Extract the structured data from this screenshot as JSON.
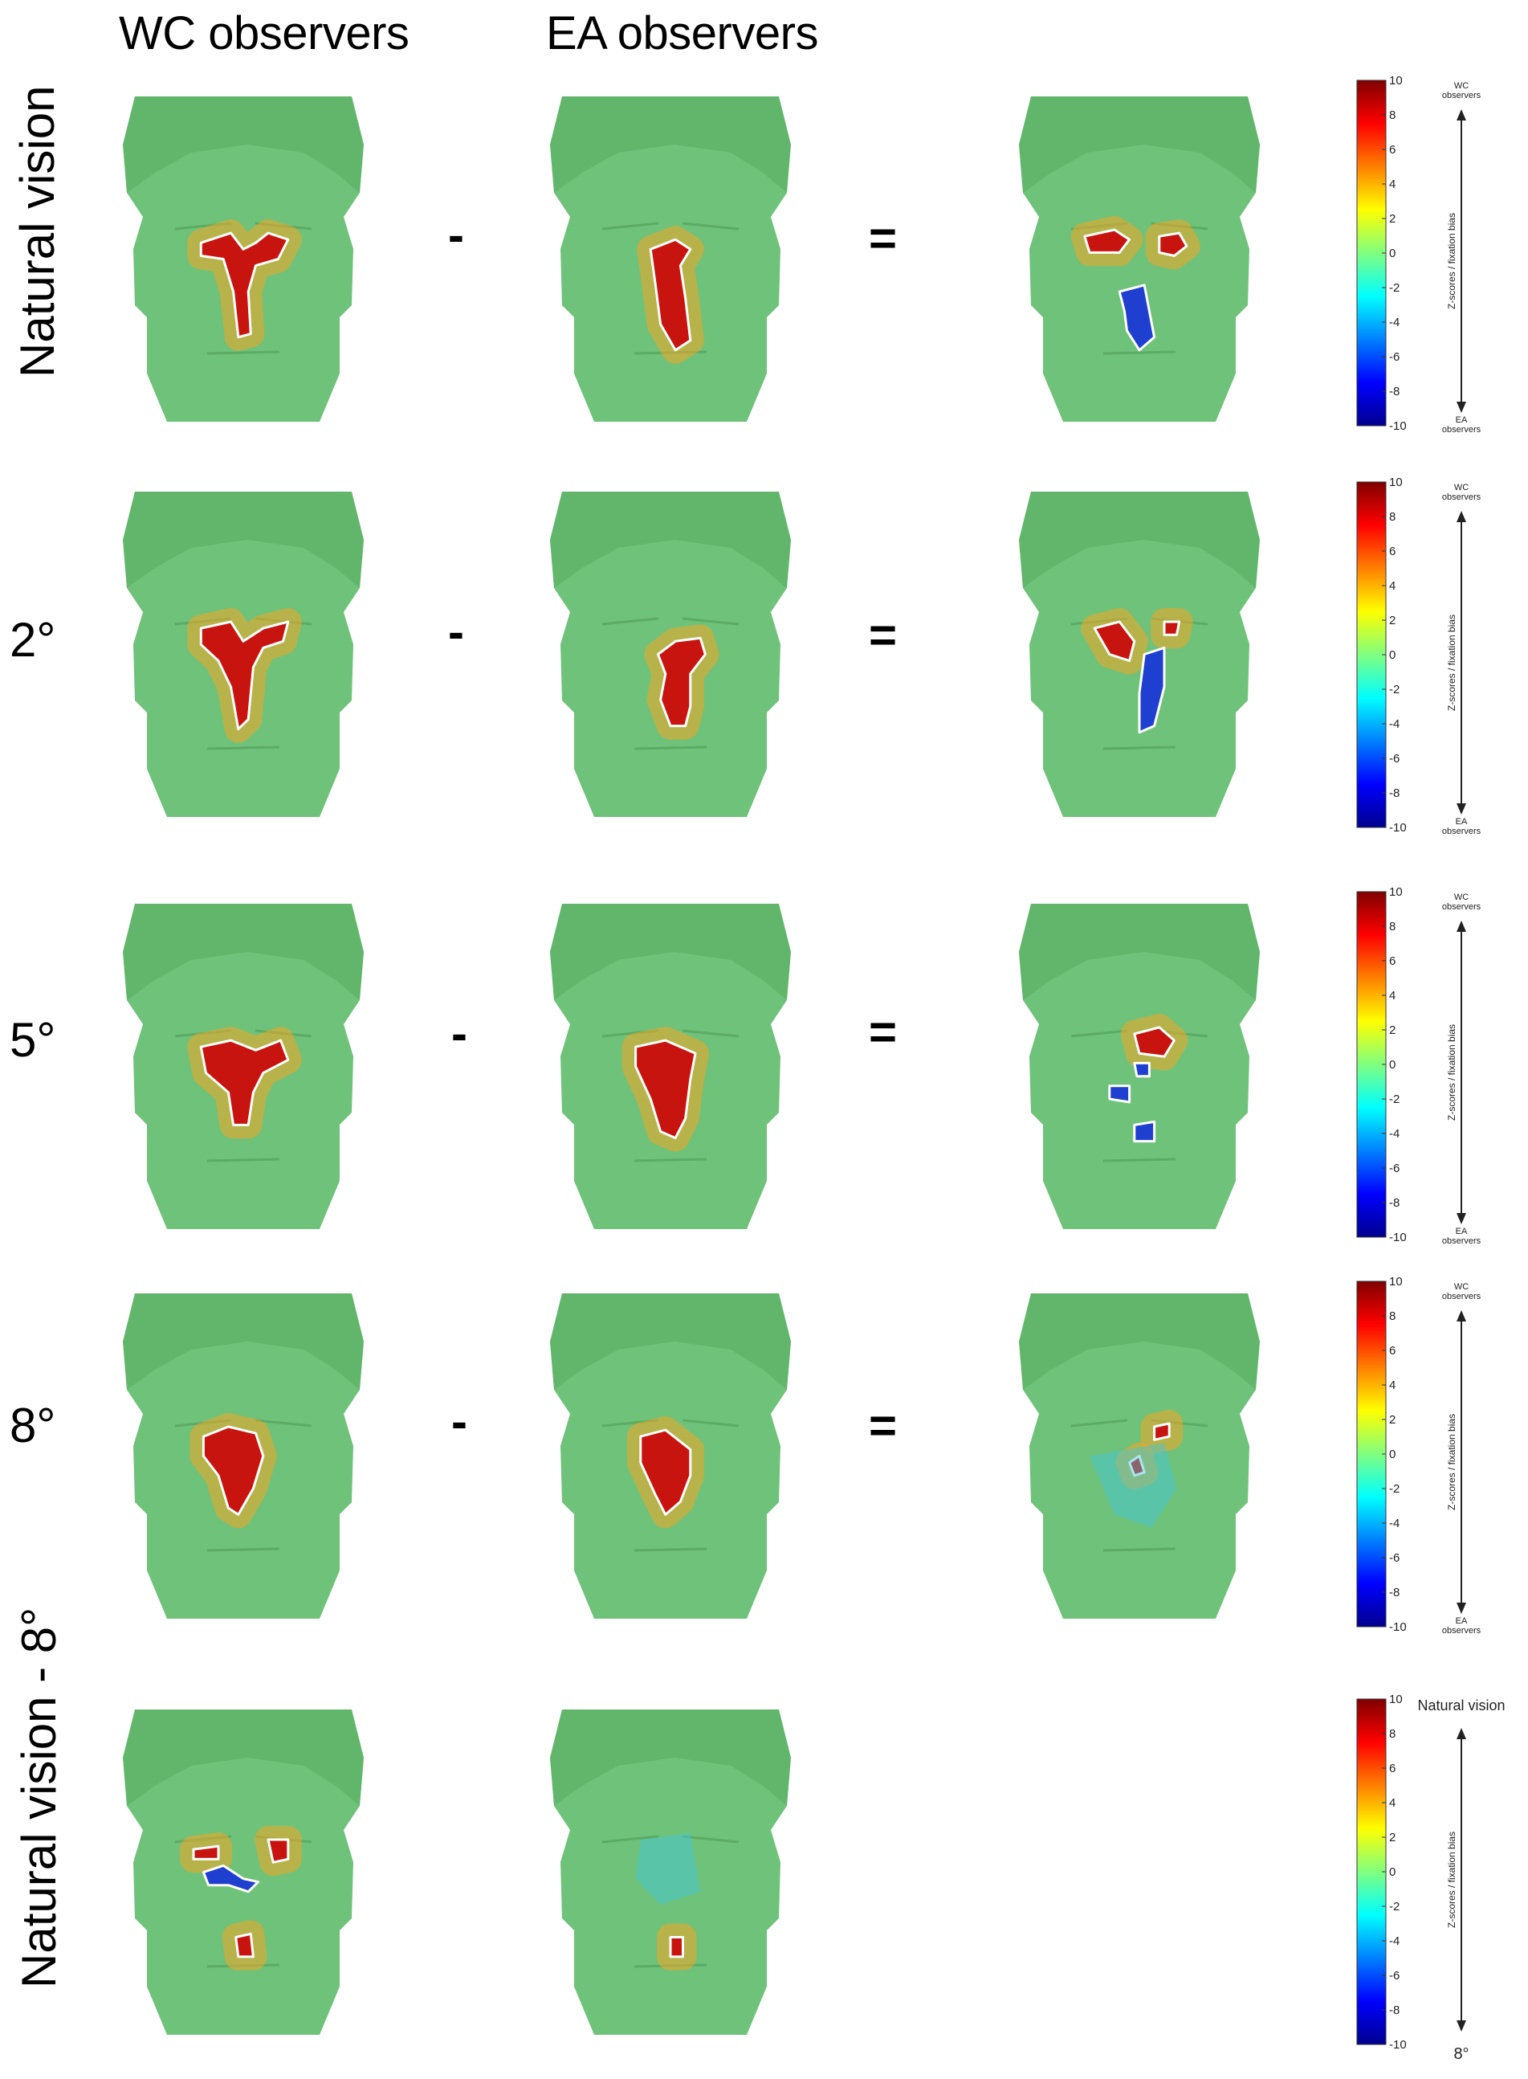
{
  "column_headers": [
    "WC observers",
    "EA observers"
  ],
  "operators": {
    "minus": "-",
    "equals": "="
  },
  "rows": [
    {
      "label": "Natural vision",
      "rotated": true,
      "has_diff": true
    },
    {
      "label": "2°",
      "rotated": false,
      "has_diff": true
    },
    {
      "label": "5°",
      "rotated": false,
      "has_diff": true
    },
    {
      "label": "8°",
      "rotated": false,
      "has_diff": true
    },
    {
      "label": "Natural vision - 8°",
      "rotated": true,
      "has_diff": false
    }
  ],
  "colorbar": {
    "ticks": [
      "10",
      "8",
      "6",
      "4",
      "2",
      "0",
      "-2",
      "-4",
      "-6",
      "-8",
      "-10"
    ],
    "axis_label": "Z-scores / fixation bias",
    "top_label_wc": [
      "WC",
      "observers"
    ],
    "bottom_label_ea": [
      "EA",
      "observers"
    ],
    "top_label_last": "Natural vision",
    "bottom_label_last": "8°",
    "colors": [
      "#00008f",
      "#0000ff",
      "#0080ff",
      "#00ffff",
      "#80ff80",
      "#ffff00",
      "#ff8000",
      "#ff0000",
      "#800000"
    ]
  },
  "colors": {
    "face_base": "#6fc27a",
    "hair": "#5aad62",
    "hot": "#c8140f",
    "warm": "#f5a623",
    "cold": "#1e3fd0",
    "cool": "#40c8e0",
    "contour": "#ffffff"
  }
}
